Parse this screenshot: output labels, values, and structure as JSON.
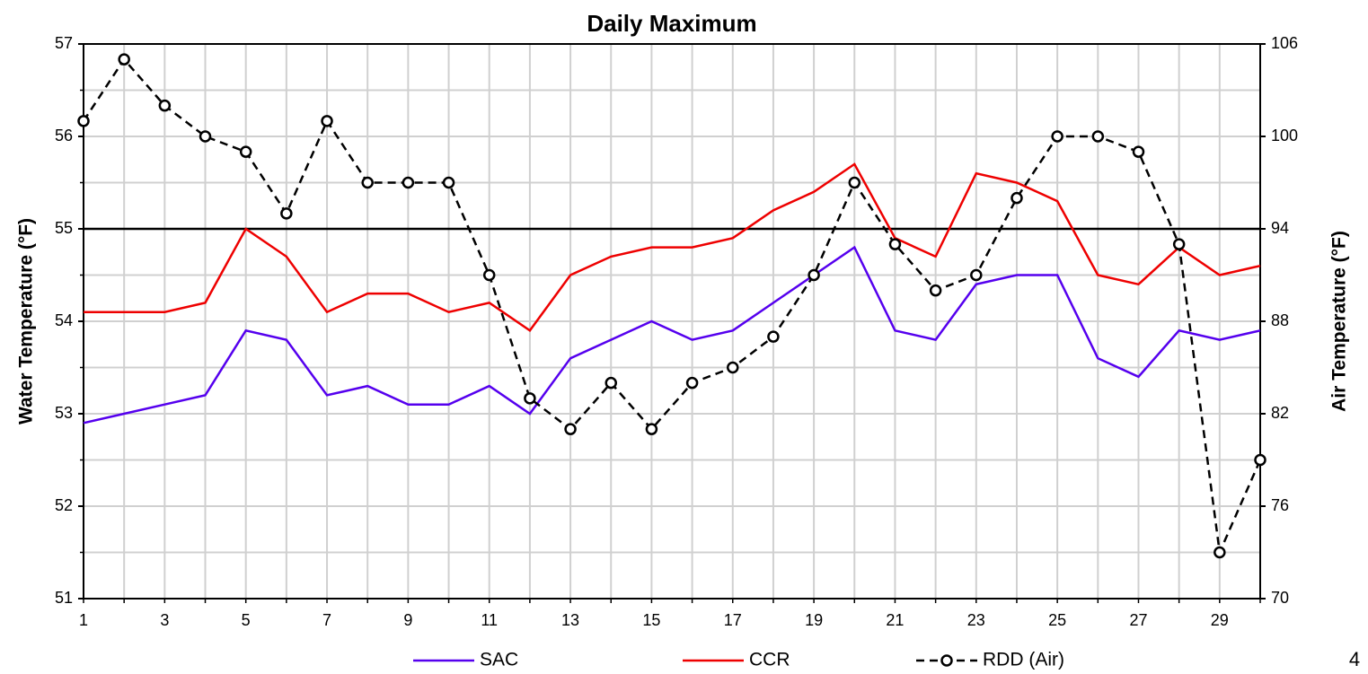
{
  "chart_data": {
    "type": "line",
    "title": "Daily Maximum",
    "y_label": "Water Temperature (°F)",
    "y2_label": "Air Temperature (°F)",
    "x": [
      1,
      2,
      3,
      4,
      5,
      6,
      7,
      8,
      9,
      10,
      11,
      12,
      13,
      14,
      15,
      16,
      17,
      18,
      19,
      20,
      21,
      22,
      23,
      24,
      25,
      26,
      27,
      28,
      29,
      30
    ],
    "xlim": [
      1,
      30
    ],
    "xticks": [
      1,
      3,
      5,
      7,
      9,
      11,
      13,
      15,
      17,
      19,
      21,
      23,
      25,
      27,
      29
    ],
    "ylim": [
      51,
      57
    ],
    "yticks": [
      51,
      52,
      53,
      54,
      55,
      56,
      57
    ],
    "y_minor_ticks": [
      51.5,
      52.5,
      53.5,
      54.5,
      55.5,
      56.5
    ],
    "y2lim": [
      70,
      106
    ],
    "y2ticks": [
      70,
      76,
      82,
      88,
      94,
      100,
      106
    ],
    "grid": true,
    "reference_line": 55,
    "series": [
      {
        "name": "SAC",
        "color": "#5500ee",
        "dashed": false,
        "markers": false,
        "values": [
          52.9,
          53.0,
          53.1,
          53.2,
          53.9,
          53.8,
          53.2,
          53.3,
          53.1,
          53.1,
          53.3,
          53.0,
          53.6,
          53.8,
          54.0,
          53.8,
          53.9,
          54.2,
          54.5,
          54.8,
          53.9,
          53.8,
          54.4,
          54.5,
          54.5,
          53.6,
          53.4,
          53.9,
          53.8,
          53.9
        ]
      },
      {
        "name": "CCR",
        "color": "#ee0000",
        "dashed": false,
        "markers": false,
        "values": [
          54.1,
          54.1,
          54.1,
          54.2,
          55.0,
          54.7,
          54.1,
          54.3,
          54.3,
          54.1,
          54.2,
          53.9,
          54.5,
          54.7,
          54.8,
          54.8,
          54.9,
          55.2,
          55.4,
          55.7,
          54.9,
          54.7,
          55.6,
          55.5,
          55.3,
          54.5,
          54.4,
          54.8,
          54.5,
          54.6
        ]
      },
      {
        "name": "RDD (Air)",
        "color": "#000000",
        "dashed": true,
        "markers": true,
        "axis": "y2",
        "values": [
          101,
          105,
          102,
          100,
          99,
          95,
          101,
          97,
          97,
          97,
          91,
          83,
          81,
          84,
          81,
          84,
          85,
          87,
          91,
          97,
          93,
          90,
          91,
          96,
          100,
          100,
          99,
          93,
          73,
          79
        ]
      }
    ],
    "page_number": "4"
  }
}
